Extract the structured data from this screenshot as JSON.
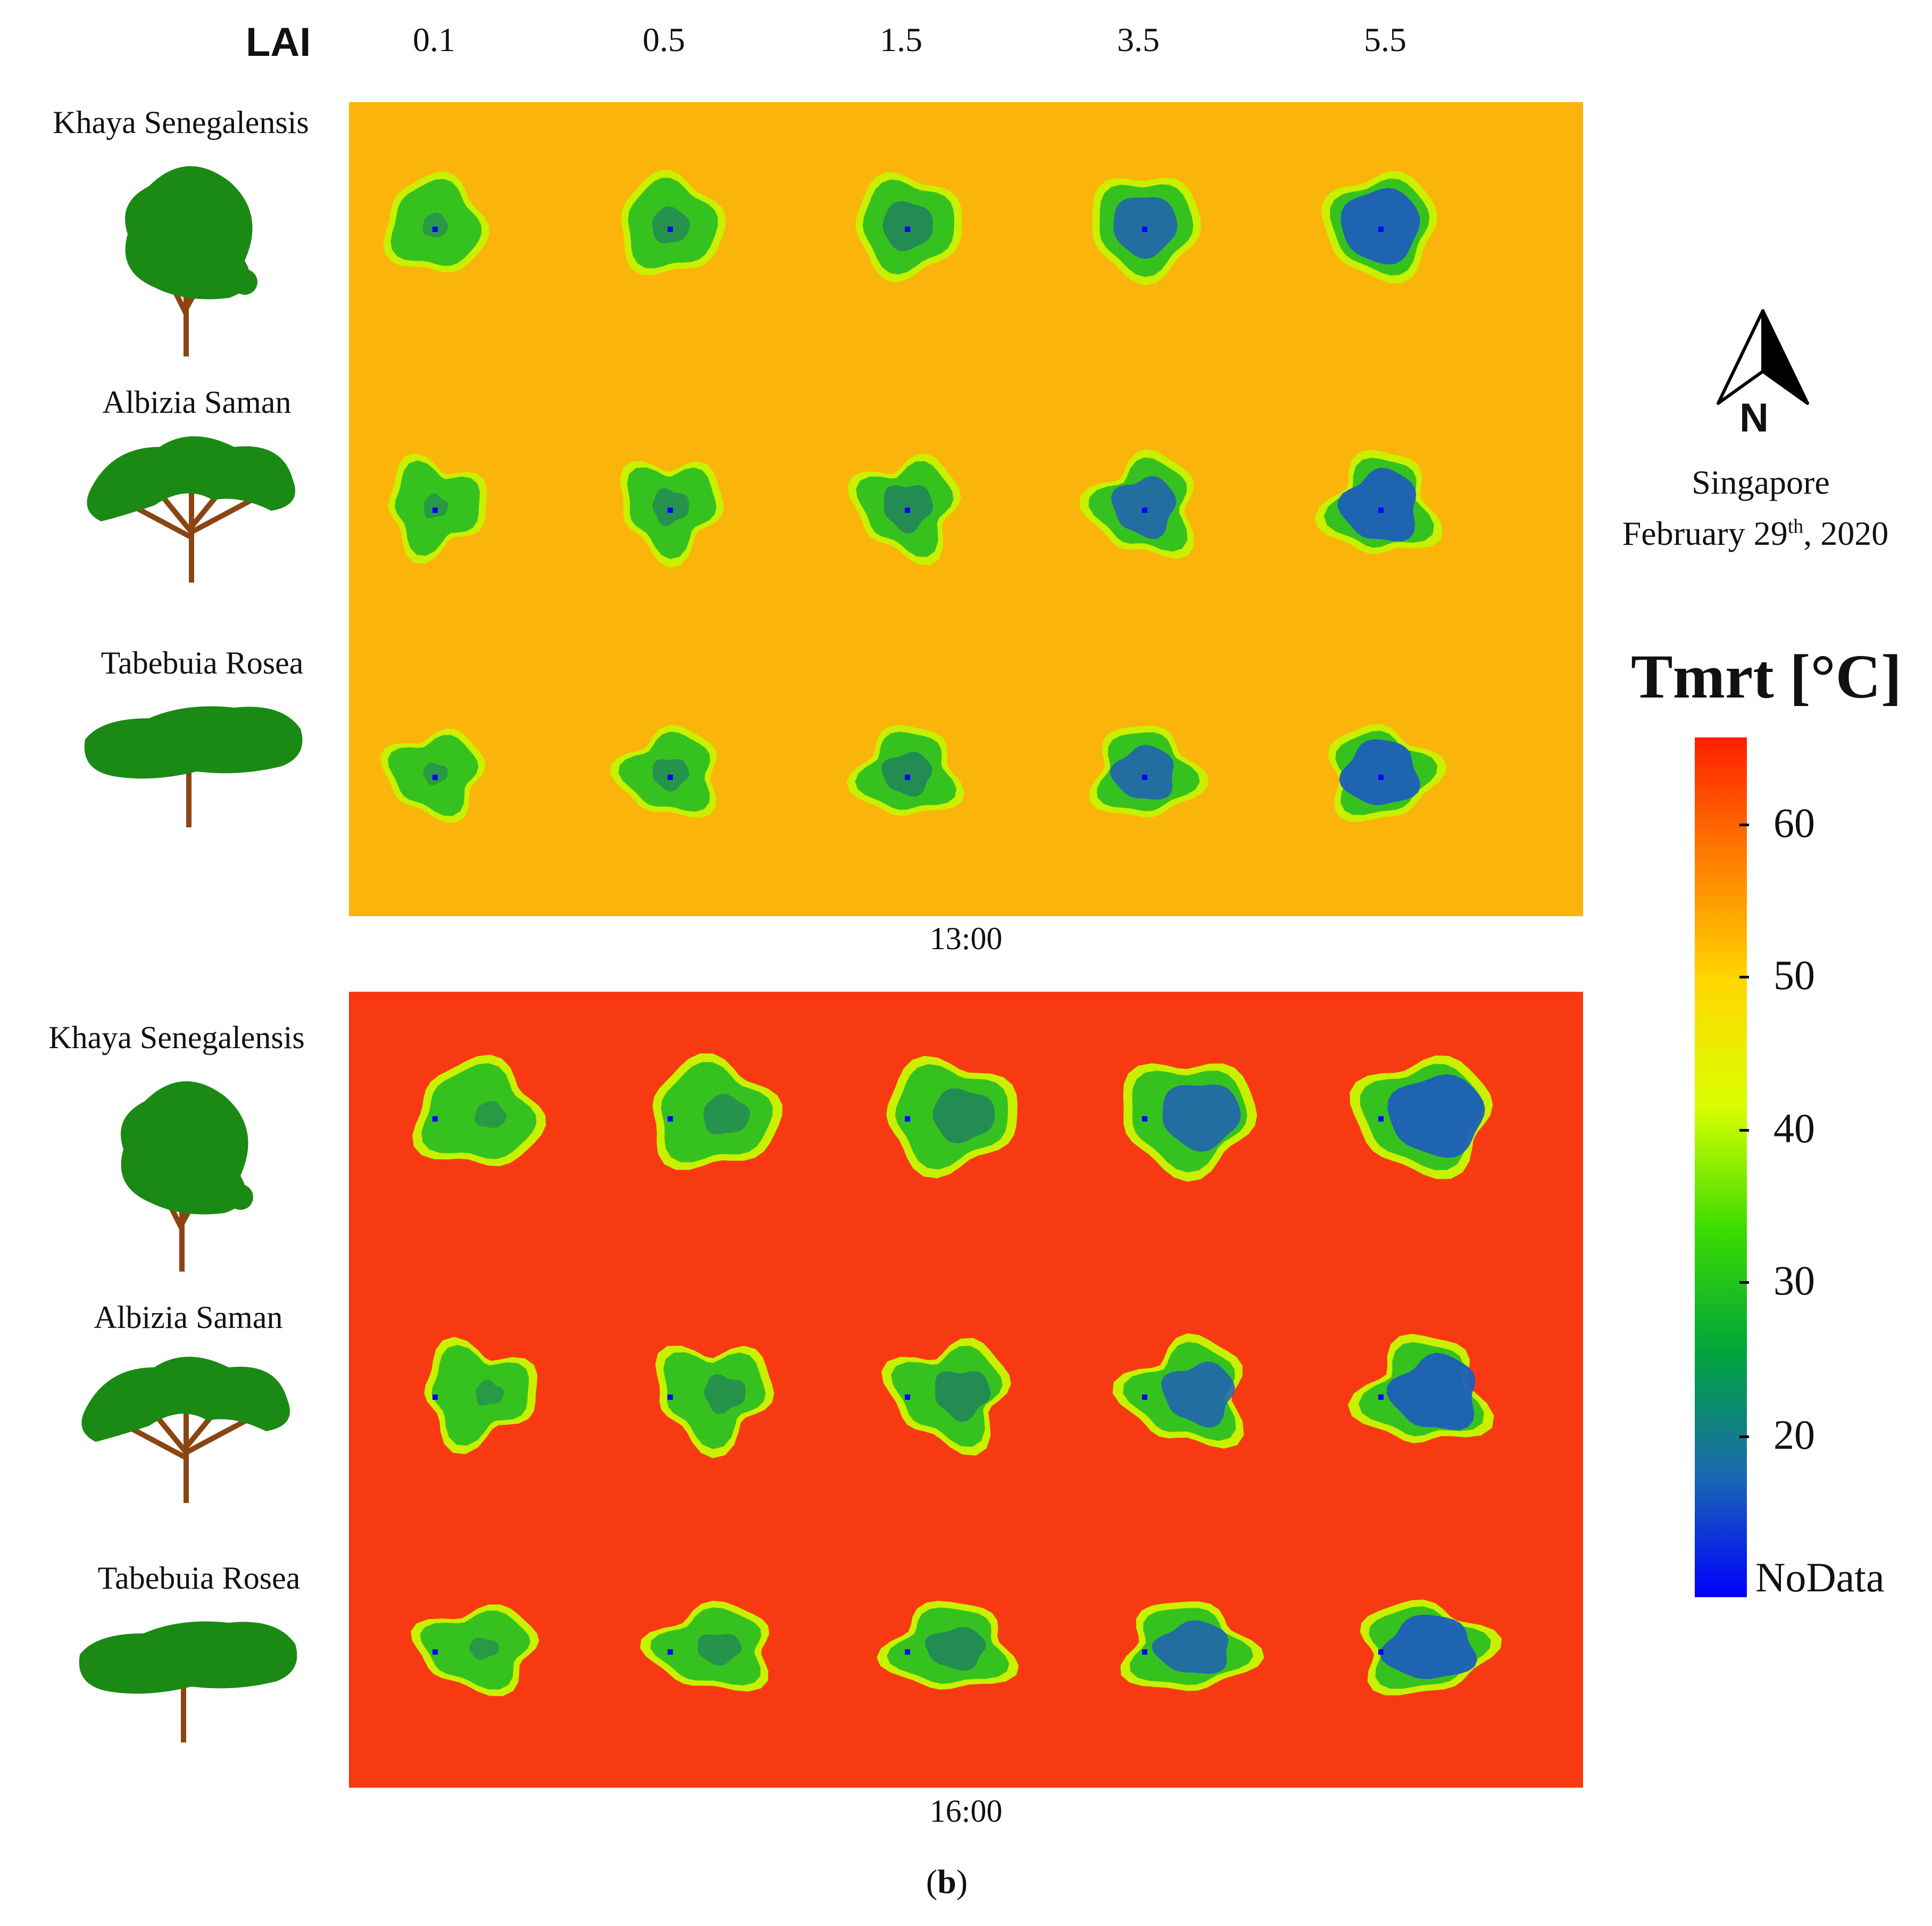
{
  "lai": {
    "header": "LAI",
    "values": [
      "0.1",
      "0.5",
      "1.5",
      "3.5",
      "5.5"
    ]
  },
  "species": [
    "Khaya Senegalensis",
    "Albizia Saman",
    "Tabebuia Rosea"
  ],
  "panels": [
    {
      "time": "13:00",
      "background": "#fbb40a"
    },
    {
      "time": "16:00",
      "background": "#f83a12"
    }
  ],
  "compass": {
    "north_label": "N"
  },
  "location": {
    "place": "Singapore",
    "date_prefix": "February 29",
    "date_sup": "th",
    "date_suffix": ", 2020"
  },
  "legend": {
    "title": "Tmrt [°C]",
    "ticks": [
      "60",
      "50",
      "40",
      "30",
      "20"
    ],
    "nodata_label": "NoData",
    "colors": [
      "#ff1e00",
      "#ff7f00",
      "#ffd800",
      "#d9ff00",
      "#3cdc00",
      "#00a53a",
      "#1a6ab0",
      "#0000ff"
    ]
  },
  "figure_label": {
    "open": "(",
    "letter": "b",
    "close": ")"
  },
  "colors": {
    "tree_foliage": "#1a8a14",
    "tree_trunk": "#8b4513",
    "shade_edge": "#c8f000",
    "shade_mid": "#36c21e",
    "shade_core": "#1d7a66",
    "shade_deep": "#1e5fb8"
  }
}
